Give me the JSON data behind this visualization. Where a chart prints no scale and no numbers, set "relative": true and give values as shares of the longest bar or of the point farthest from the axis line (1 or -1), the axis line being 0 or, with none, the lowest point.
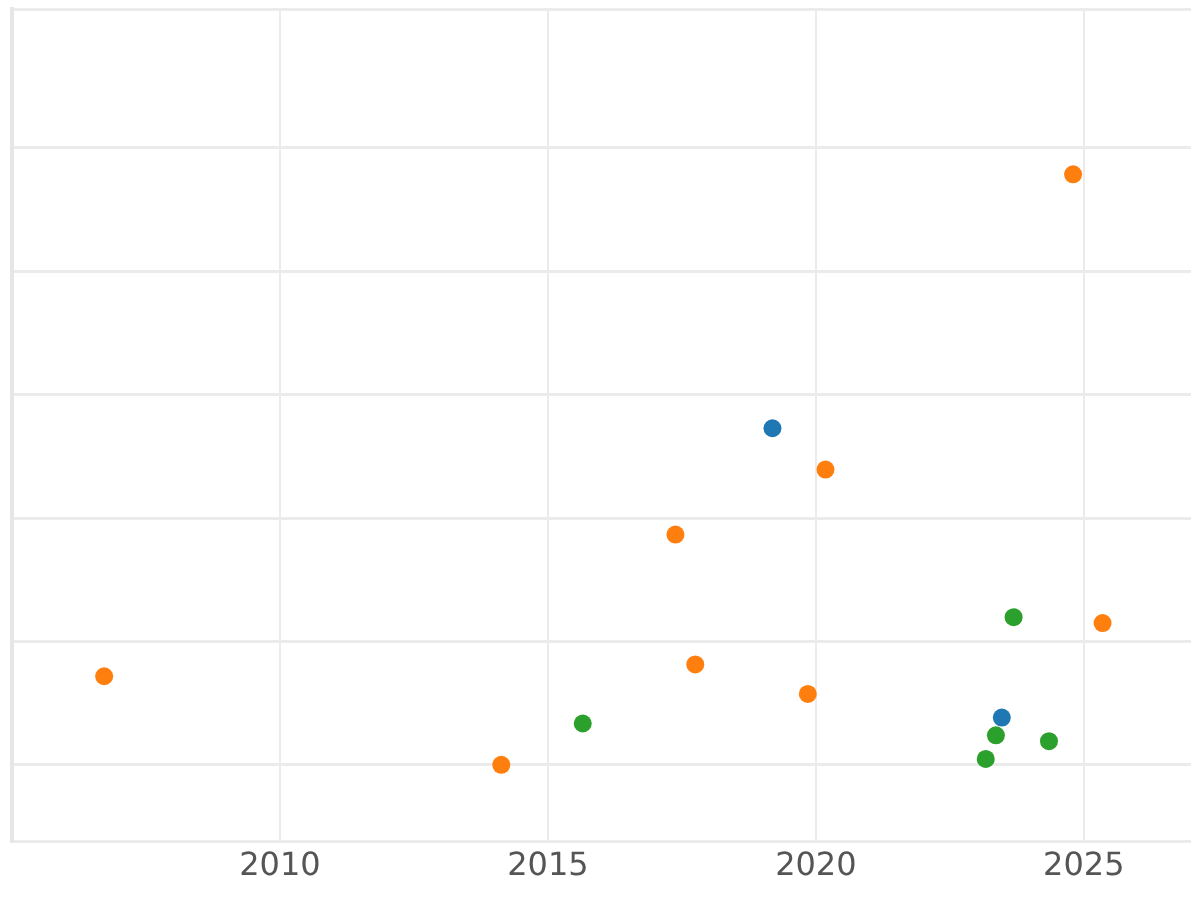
{
  "chart_data": {
    "type": "scatter",
    "relative": true,
    "grid": true,
    "legend": false,
    "marker": "circle",
    "xlim": [
      2005,
      2027
    ],
    "xticks": [
      2010,
      2015,
      2020,
      2025
    ],
    "series": [
      {
        "color": "#1f77b4",
        "x": [
          2019.19,
          2023.47
        ],
        "values": [
          0.57,
          0.08
        ]
      },
      {
        "color": "#ff7f0e",
        "x": [
          2006.72,
          2014.13,
          2017.38,
          2017.75,
          2019.85,
          2020.18,
          2024.8,
          2025.35
        ],
        "values": [
          0.15,
          0,
          0.39,
          0.17,
          0.12,
          0.5,
          1,
          0.24
        ]
      },
      {
        "color": "#2ca02c",
        "x": [
          2015.65,
          2023.17,
          2023.36,
          2023.69,
          2024.35
        ],
        "values": [
          0.07,
          0.01,
          0.05,
          0.25,
          0.04
        ]
      }
    ]
  }
}
